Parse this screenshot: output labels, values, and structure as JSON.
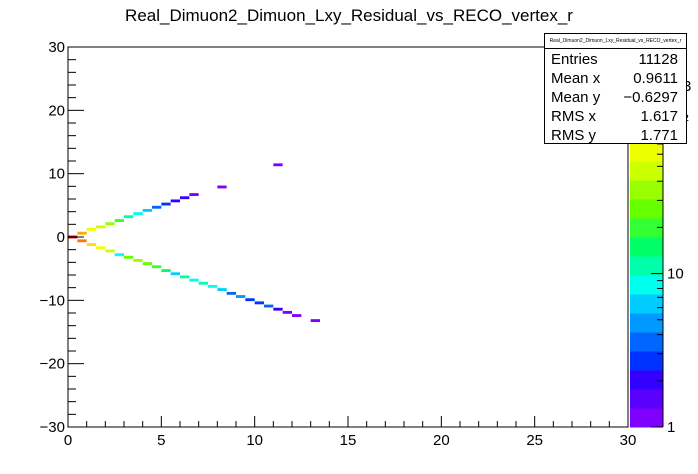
{
  "chart_data": {
    "type": "heatmap",
    "title": "Real_Dimuon2_Dimuon_Lxy_Residual_vs_RECO_vertex_r",
    "xlabel": "",
    "ylabel": "",
    "xlim": [
      0,
      30
    ],
    "ylim": [
      -30,
      30
    ],
    "x_ticks": [
      "0",
      "5",
      "10",
      "15",
      "20",
      "25",
      "30"
    ],
    "y_ticks": [
      "30",
      "20",
      "10",
      "0",
      "−10",
      "−20",
      "−30"
    ],
    "z_scale": "log",
    "z_range": [
      1,
      300
    ],
    "z_ticks": [
      "1",
      "10",
      "10²"
    ],
    "z_exponent_label": "3",
    "palette": [
      "#7f00ff",
      "#5a00ff",
      "#3300ff",
      "#0033ff",
      "#0066ff",
      "#0099ff",
      "#00ccff",
      "#00ffee",
      "#00ffaa",
      "#00ff66",
      "#33ff33",
      "#66ff00",
      "#99ff00",
      "#ccff00",
      "#eeff00",
      "#ffdd00",
      "#ffaa00",
      "#ff7700",
      "#ff3300",
      "#cc0000"
    ],
    "bins": [
      {
        "x": 0.0,
        "y": 0.0,
        "z": 300
      },
      {
        "x": 0.5,
        "y": 0.6,
        "z": 120
      },
      {
        "x": 0.5,
        "y": -0.6,
        "z": 150
      },
      {
        "x": 1.0,
        "y": 1.2,
        "z": 70
      },
      {
        "x": 1.0,
        "y": -1.2,
        "z": 80
      },
      {
        "x": 1.5,
        "y": 1.6,
        "z": 50
      },
      {
        "x": 1.5,
        "y": -1.7,
        "z": 60
      },
      {
        "x": 2.0,
        "y": 2.1,
        "z": 35
      },
      {
        "x": 2.0,
        "y": -2.2,
        "z": 45
      },
      {
        "x": 2.5,
        "y": 2.6,
        "z": 20
      },
      {
        "x": 2.5,
        "y": -2.8,
        "z": 8
      },
      {
        "x": 3.0,
        "y": 3.2,
        "z": 12
      },
      {
        "x": 3.0,
        "y": -3.2,
        "z": 30
      },
      {
        "x": 3.5,
        "y": 3.7,
        "z": 8
      },
      {
        "x": 3.5,
        "y": -3.7,
        "z": 40
      },
      {
        "x": 4.0,
        "y": 4.2,
        "z": 6
      },
      {
        "x": 4.0,
        "y": -4.2,
        "z": 25
      },
      {
        "x": 4.5,
        "y": 4.7,
        "z": 4
      },
      {
        "x": 4.5,
        "y": -4.7,
        "z": 20
      },
      {
        "x": 5.0,
        "y": 5.2,
        "z": 3
      },
      {
        "x": 5.0,
        "y": -5.3,
        "z": 15
      },
      {
        "x": 5.5,
        "y": 5.7,
        "z": 2
      },
      {
        "x": 5.5,
        "y": -5.8,
        "z": 6
      },
      {
        "x": 6.0,
        "y": 6.2,
        "z": 2
      },
      {
        "x": 6.0,
        "y": -6.3,
        "z": 10
      },
      {
        "x": 6.5,
        "y": 6.7,
        "z": 1
      },
      {
        "x": 6.5,
        "y": -6.8,
        "z": 8
      },
      {
        "x": 7.0,
        "y": -7.3,
        "z": 12
      },
      {
        "x": 7.5,
        "y": -7.8,
        "z": 9
      },
      {
        "x": 8.0,
        "y": 7.9,
        "z": 1
      },
      {
        "x": 8.0,
        "y": -8.3,
        "z": 6
      },
      {
        "x": 8.5,
        "y": -8.9,
        "z": 4
      },
      {
        "x": 9.0,
        "y": -9.4,
        "z": 5
      },
      {
        "x": 9.5,
        "y": -9.9,
        "z": 3
      },
      {
        "x": 10.0,
        "y": -10.4,
        "z": 3
      },
      {
        "x": 10.5,
        "y": -10.9,
        "z": 4
      },
      {
        "x": 11.0,
        "y": 11.4,
        "z": 1
      },
      {
        "x": 11.0,
        "y": -11.4,
        "z": 2
      },
      {
        "x": 11.5,
        "y": -11.9,
        "z": 1
      },
      {
        "x": 12.0,
        "y": -12.4,
        "z": 1
      },
      {
        "x": 13.0,
        "y": -13.2,
        "z": 1
      }
    ]
  },
  "stats": {
    "header": "Real_Dimuon2_Dimuon_Lxy_Residual_vs_RECO_vertex_r",
    "rows": [
      {
        "label": "Entries",
        "value": "11128"
      },
      {
        "label": "Mean x",
        "value": "0.9611"
      },
      {
        "label": "Mean y",
        "value": "−0.6297"
      },
      {
        "label": "RMS x",
        "value": "1.617"
      },
      {
        "label": "RMS y",
        "value": "1.771"
      }
    ]
  }
}
